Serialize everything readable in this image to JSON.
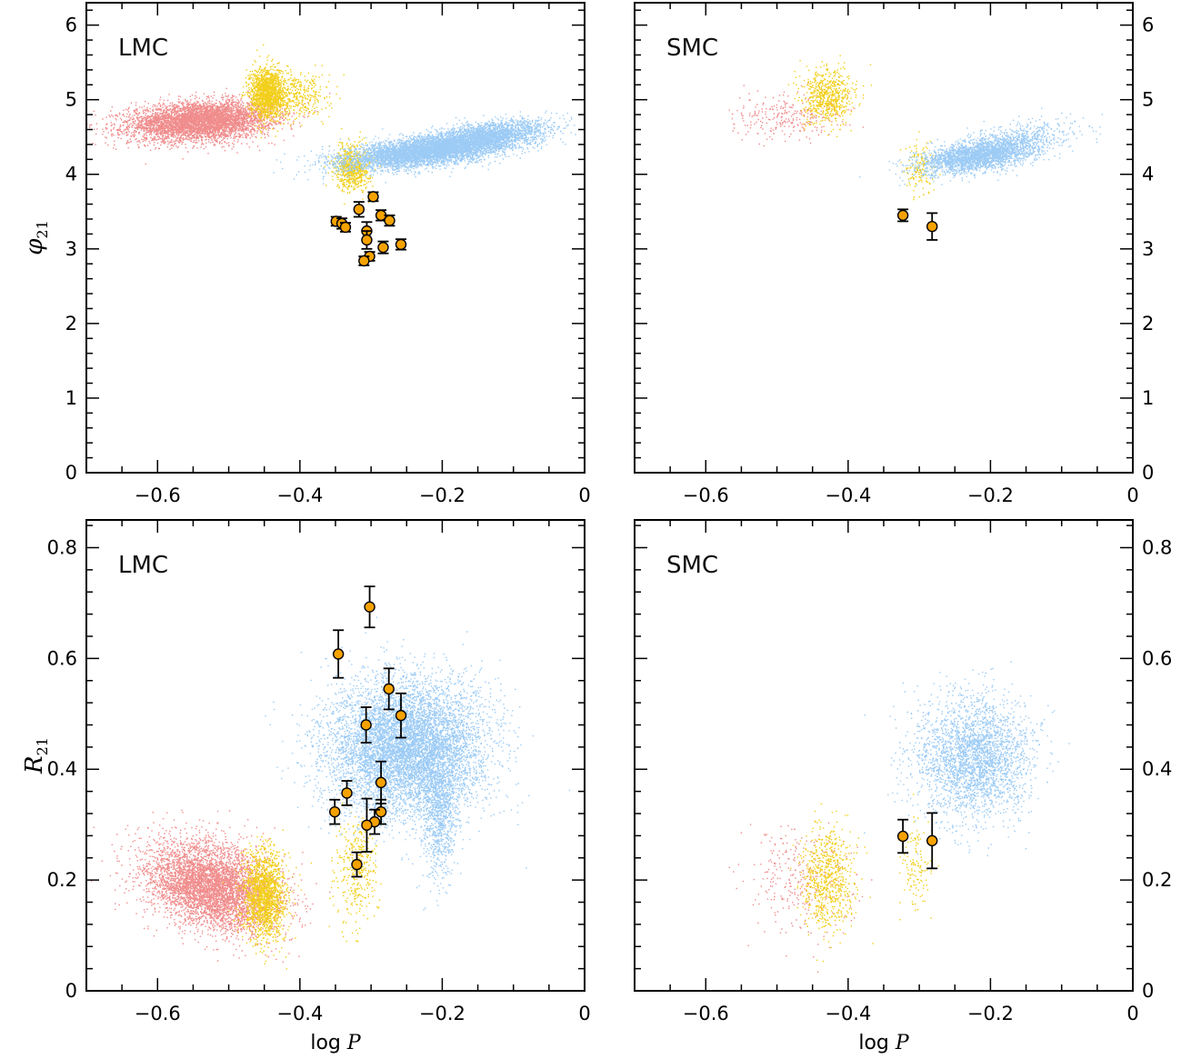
{
  "colors": {
    "red_population": "#f08c8c",
    "yellow_population": "#f2cf1a",
    "blue_population": "#9ccbf5",
    "marker_fill": "#f5a200",
    "marker_edge": "#000000"
  },
  "chart_data": [
    {
      "type": "scatter",
      "panel_label": "LMC",
      "xlabel": "",
      "ylabel_base": "φ",
      "ylabel_sub": "21",
      "xlim": [
        -0.7,
        0
      ],
      "ylim": [
        0,
        6.3
      ],
      "xticks": [
        -0.6,
        -0.4,
        -0.2,
        0
      ],
      "xtick_labels": [
        "−0.6",
        "−0.4",
        "−0.2",
        "0"
      ],
      "yticks": [
        0,
        1,
        2,
        3,
        4,
        5,
        6
      ],
      "ytick_labels": [
        "0",
        "1",
        "2",
        "3",
        "4",
        "5",
        "6"
      ],
      "ytick_side": "left",
      "clouds": [
        {
          "color": "red",
          "cx": -0.54,
          "cy": 4.72,
          "sx": 0.05,
          "sy": 0.13,
          "n": 5000,
          "corr": 0.2
        },
        {
          "color": "yellow",
          "cx": -0.447,
          "cy": 5.1,
          "sx": 0.012,
          "sy": 0.17,
          "n": 1400,
          "corr": 0
        },
        {
          "color": "yellow",
          "cx": -0.41,
          "cy": 5.05,
          "sx": 0.025,
          "sy": 0.15,
          "n": 450,
          "corr": 0
        },
        {
          "color": "yellow",
          "cx": -0.327,
          "cy": 4.1,
          "sx": 0.012,
          "sy": 0.15,
          "n": 700,
          "corr": 0
        },
        {
          "color": "blue",
          "cx": -0.215,
          "cy": 4.33,
          "sx": 0.06,
          "sy": 0.12,
          "n": 6000,
          "corr": 0.6
        },
        {
          "color": "blue",
          "cx": -0.13,
          "cy": 4.55,
          "sx": 0.04,
          "sy": 0.1,
          "n": 1500,
          "corr": 0.5
        }
      ],
      "points": [
        {
          "x": -0.349,
          "y": 3.37,
          "err": 0.06
        },
        {
          "x": -0.341,
          "y": 3.34,
          "err": 0.07
        },
        {
          "x": -0.336,
          "y": 3.29,
          "err": 0.06
        },
        {
          "x": -0.317,
          "y": 3.53,
          "err": 0.1
        },
        {
          "x": -0.297,
          "y": 3.7,
          "err": 0.06
        },
        {
          "x": -0.286,
          "y": 3.45,
          "err": 0.07
        },
        {
          "x": -0.274,
          "y": 3.38,
          "err": 0.07
        },
        {
          "x": -0.306,
          "y": 3.24,
          "err": 0.12
        },
        {
          "x": -0.306,
          "y": 3.12,
          "err": 0.12
        },
        {
          "x": -0.283,
          "y": 3.02,
          "err": 0.08
        },
        {
          "x": -0.258,
          "y": 3.06,
          "err": 0.07
        },
        {
          "x": -0.302,
          "y": 2.9,
          "err": 0.06
        },
        {
          "x": -0.31,
          "y": 2.84,
          "err": 0.06
        }
      ]
    },
    {
      "type": "scatter",
      "panel_label": "SMC",
      "xlabel": "",
      "ylabel_base": "",
      "ylabel_sub": "",
      "xlim": [
        -0.7,
        0
      ],
      "ylim": [
        0,
        6.3
      ],
      "xticks": [
        -0.6,
        -0.4,
        -0.2,
        0
      ],
      "xtick_labels": [
        "−0.6",
        "−0.4",
        "−0.2",
        "0"
      ],
      "yticks": [
        0,
        1,
        2,
        3,
        4,
        5,
        6
      ],
      "ytick_labels": [
        "0",
        "1",
        "2",
        "3",
        "4",
        "5",
        "6"
      ],
      "ytick_side": "right",
      "clouds": [
        {
          "color": "red",
          "cx": -0.48,
          "cy": 4.78,
          "sx": 0.04,
          "sy": 0.15,
          "n": 280,
          "corr": 0
        },
        {
          "color": "yellow",
          "cx": -0.43,
          "cy": 5.05,
          "sx": 0.018,
          "sy": 0.18,
          "n": 650,
          "corr": 0
        },
        {
          "color": "yellow",
          "cx": -0.3,
          "cy": 4.1,
          "sx": 0.012,
          "sy": 0.18,
          "n": 150,
          "corr": 0
        },
        {
          "color": "blue",
          "cx": -0.22,
          "cy": 4.25,
          "sx": 0.04,
          "sy": 0.12,
          "n": 2600,
          "corr": 0.5
        },
        {
          "color": "blue",
          "cx": -0.15,
          "cy": 4.5,
          "sx": 0.04,
          "sy": 0.12,
          "n": 400,
          "corr": 0.3
        }
      ],
      "points": [
        {
          "x": -0.323,
          "y": 3.45,
          "err": 0.08
        },
        {
          "x": -0.282,
          "y": 3.3,
          "err": 0.18
        }
      ]
    },
    {
      "type": "scatter",
      "panel_label": "LMC",
      "xlabel_base": "log",
      "xlabel_var": "P",
      "ylabel_base": "R",
      "ylabel_sub": "21",
      "xlim": [
        -0.7,
        0
      ],
      "ylim": [
        0,
        0.85
      ],
      "xticks": [
        -0.6,
        -0.4,
        -0.2,
        0
      ],
      "xtick_labels": [
        "−0.6",
        "−0.4",
        "−0.2",
        "0"
      ],
      "yticks": [
        0,
        0.2,
        0.4,
        0.6,
        0.8
      ],
      "ytick_labels": [
        "0",
        "0.2",
        "0.4",
        "0.6",
        "0.8"
      ],
      "ytick_side": "left",
      "clouds": [
        {
          "color": "red",
          "cx": -0.525,
          "cy": 0.19,
          "sx": 0.045,
          "sy": 0.04,
          "n": 5000,
          "corr": -0.3
        },
        {
          "color": "yellow",
          "cx": -0.45,
          "cy": 0.17,
          "sx": 0.015,
          "sy": 0.04,
          "n": 1600,
          "corr": 0
        },
        {
          "color": "yellow",
          "cx": -0.32,
          "cy": 0.22,
          "sx": 0.015,
          "sy": 0.05,
          "n": 350,
          "corr": 0
        },
        {
          "color": "blue",
          "cx": -0.25,
          "cy": 0.44,
          "sx": 0.055,
          "sy": 0.06,
          "n": 7500,
          "corr": 0
        },
        {
          "color": "blue",
          "cx": -0.205,
          "cy": 0.32,
          "sx": 0.012,
          "sy": 0.06,
          "n": 900,
          "corr": 0
        }
      ],
      "points": [
        {
          "x": -0.346,
          "y": 0.608,
          "err": 0.043
        },
        {
          "x": -0.302,
          "y": 0.693,
          "err": 0.037
        },
        {
          "x": -0.275,
          "y": 0.545,
          "err": 0.037
        },
        {
          "x": -0.258,
          "y": 0.497,
          "err": 0.04
        },
        {
          "x": -0.307,
          "y": 0.48,
          "err": 0.032
        },
        {
          "x": -0.286,
          "y": 0.376,
          "err": 0.038
        },
        {
          "x": -0.334,
          "y": 0.357,
          "err": 0.022
        },
        {
          "x": -0.351,
          "y": 0.323,
          "err": 0.022
        },
        {
          "x": -0.286,
          "y": 0.323,
          "err": 0.022
        },
        {
          "x": -0.295,
          "y": 0.305,
          "err": 0.022
        },
        {
          "x": -0.306,
          "y": 0.299,
          "err": 0.048
        },
        {
          "x": -0.32,
          "y": 0.228,
          "err": 0.022
        }
      ]
    },
    {
      "type": "scatter",
      "panel_label": "SMC",
      "xlabel_base": "log",
      "xlabel_var": "P",
      "ylabel_base": "",
      "ylabel_sub": "",
      "xlim": [
        -0.7,
        0
      ],
      "ylim": [
        0,
        0.85
      ],
      "xticks": [
        -0.6,
        -0.4,
        -0.2,
        0
      ],
      "xtick_labels": [
        "−0.6",
        "−0.4",
        "−0.2",
        "0"
      ],
      "yticks": [
        0,
        0.2,
        0.4,
        0.6,
        0.8
      ],
      "ytick_labels": [
        "0",
        "0.2",
        "0.4",
        "0.6",
        "0.8"
      ],
      "ytick_side": "right",
      "clouds": [
        {
          "color": "red",
          "cx": -0.47,
          "cy": 0.2,
          "sx": 0.04,
          "sy": 0.05,
          "n": 300,
          "corr": 0
        },
        {
          "color": "yellow",
          "cx": -0.43,
          "cy": 0.2,
          "sx": 0.018,
          "sy": 0.05,
          "n": 700,
          "corr": 0
        },
        {
          "color": "yellow",
          "cx": -0.305,
          "cy": 0.23,
          "sx": 0.012,
          "sy": 0.04,
          "n": 130,
          "corr": 0
        },
        {
          "color": "blue",
          "cx": -0.225,
          "cy": 0.42,
          "sx": 0.04,
          "sy": 0.055,
          "n": 2800,
          "corr": 0
        }
      ],
      "points": [
        {
          "x": -0.323,
          "y": 0.279,
          "err": 0.03
        },
        {
          "x": -0.282,
          "y": 0.271,
          "err": 0.05
        }
      ]
    }
  ]
}
